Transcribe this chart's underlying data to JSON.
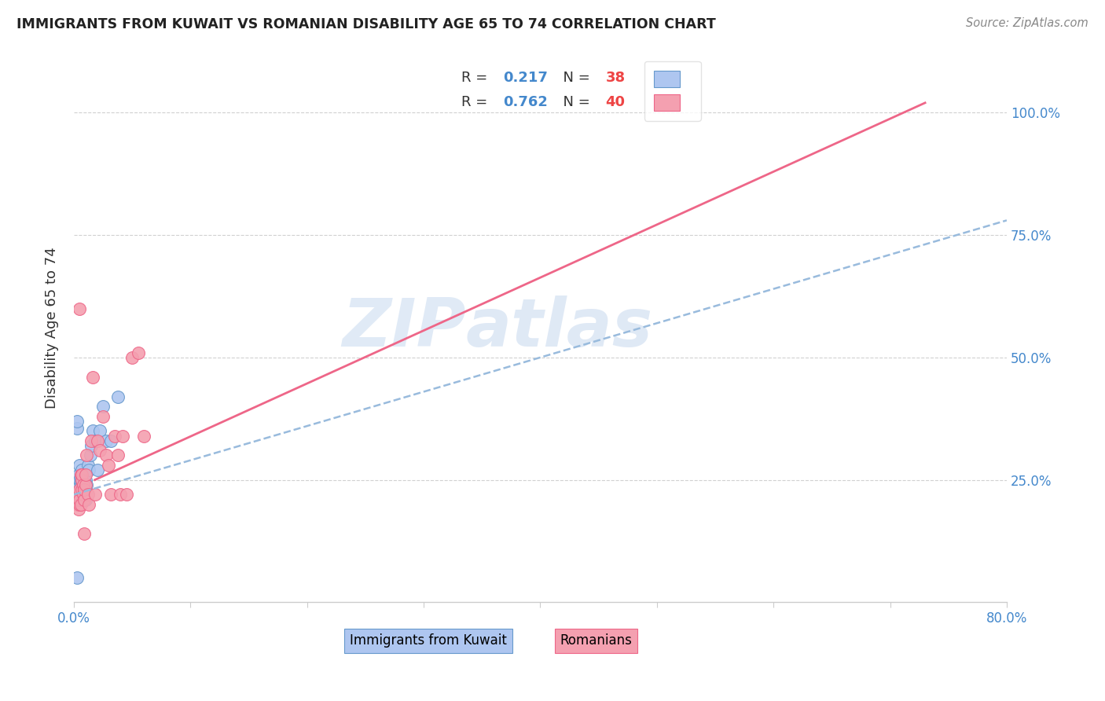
{
  "title": "IMMIGRANTS FROM KUWAIT VS ROMANIAN DISABILITY AGE 65 TO 74 CORRELATION CHART",
  "source": "Source: ZipAtlas.com",
  "ylabel": "Disability Age 65 to 74",
  "xlim": [
    0.0,
    0.8
  ],
  "ylim": [
    0.0,
    1.1
  ],
  "x_ticks": [
    0.0,
    0.1,
    0.2,
    0.3,
    0.4,
    0.5,
    0.6,
    0.7,
    0.8
  ],
  "x_tick_labels": [
    "0.0%",
    "",
    "",
    "",
    "",
    "",
    "",
    "",
    "80.0%"
  ],
  "y_ticks": [
    0.0,
    0.25,
    0.5,
    0.75,
    1.0
  ],
  "legend": {
    "kuwait_R": "0.217",
    "kuwait_N": "38",
    "romanian_R": "0.762",
    "romanian_N": "40"
  },
  "watermark_zip": "ZIP",
  "watermark_atlas": "atlas",
  "kuwait_fill": "#aec6f0",
  "kuwait_edge": "#6699cc",
  "romanian_fill": "#f4a0b0",
  "romanian_edge": "#ee6688",
  "kuwait_line_color": "#99bbdd",
  "romanian_line_color": "#ee6688",
  "kuwait_line": {
    "x0": 0.0,
    "y0": 0.22,
    "x1": 0.8,
    "y1": 0.78
  },
  "romanian_line": {
    "x0": 0.018,
    "y0": 0.25,
    "x1": 0.73,
    "y1": 1.02
  },
  "kuwait_scatter": {
    "x": [
      0.003,
      0.003,
      0.004,
      0.004,
      0.004,
      0.005,
      0.005,
      0.005,
      0.005,
      0.005,
      0.006,
      0.006,
      0.006,
      0.007,
      0.007,
      0.007,
      0.008,
      0.008,
      0.008,
      0.009,
      0.009,
      0.01,
      0.01,
      0.01,
      0.011,
      0.012,
      0.013,
      0.014,
      0.015,
      0.016,
      0.018,
      0.02,
      0.022,
      0.025,
      0.028,
      0.032,
      0.038,
      0.003
    ],
    "y": [
      0.355,
      0.37,
      0.24,
      0.25,
      0.26,
      0.22,
      0.23,
      0.24,
      0.25,
      0.28,
      0.22,
      0.24,
      0.25,
      0.25,
      0.26,
      0.27,
      0.22,
      0.23,
      0.24,
      0.23,
      0.25,
      0.21,
      0.23,
      0.25,
      0.24,
      0.28,
      0.27,
      0.3,
      0.32,
      0.35,
      0.33,
      0.27,
      0.35,
      0.4,
      0.33,
      0.33,
      0.42,
      0.05
    ]
  },
  "romanian_scatter": {
    "x": [
      0.003,
      0.003,
      0.004,
      0.004,
      0.005,
      0.005,
      0.005,
      0.005,
      0.006,
      0.006,
      0.007,
      0.007,
      0.007,
      0.008,
      0.008,
      0.009,
      0.009,
      0.01,
      0.01,
      0.011,
      0.012,
      0.013,
      0.015,
      0.016,
      0.018,
      0.02,
      0.022,
      0.025,
      0.028,
      0.03,
      0.032,
      0.035,
      0.038,
      0.04,
      0.042,
      0.045,
      0.05,
      0.055,
      0.06,
      0.009
    ],
    "y": [
      0.2,
      0.22,
      0.19,
      0.22,
      0.2,
      0.21,
      0.23,
      0.6,
      0.2,
      0.26,
      0.23,
      0.25,
      0.26,
      0.22,
      0.24,
      0.21,
      0.23,
      0.24,
      0.26,
      0.3,
      0.22,
      0.2,
      0.33,
      0.46,
      0.22,
      0.33,
      0.31,
      0.38,
      0.3,
      0.28,
      0.22,
      0.34,
      0.3,
      0.22,
      0.34,
      0.22,
      0.5,
      0.51,
      0.34,
      0.14
    ]
  }
}
